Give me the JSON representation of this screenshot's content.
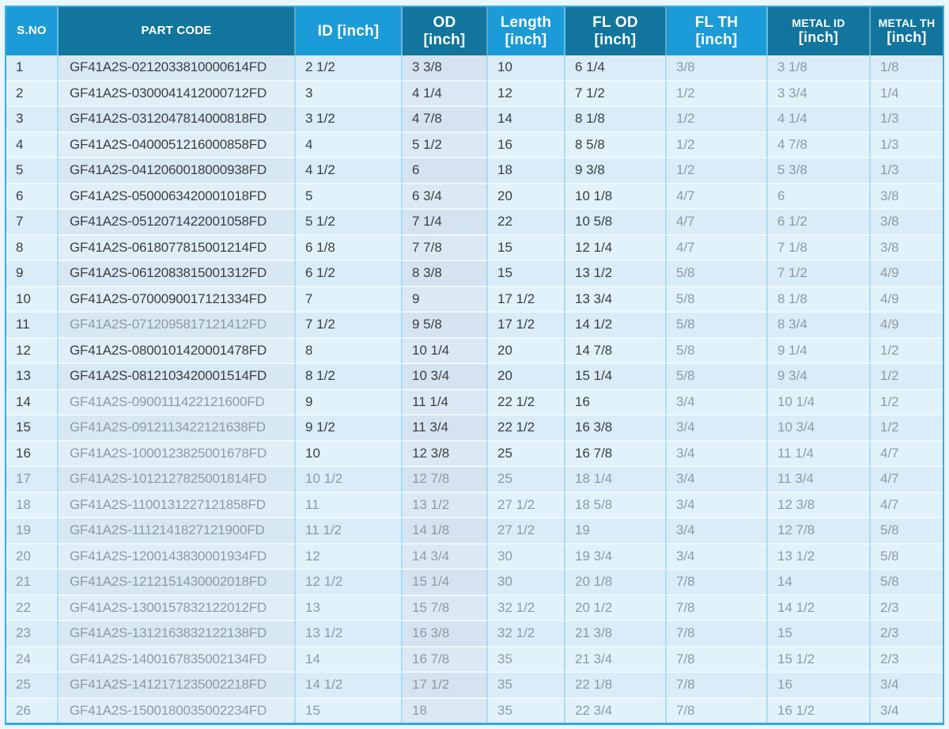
{
  "palette": {
    "page_background": "#e9f6fc",
    "header_light_blue": "#1b9bd7",
    "header_dark_teal": "#11759d",
    "row_odd": "#d9ecf7",
    "row_even": "#e1f2fa",
    "grid_vertical": "#a9dcf2",
    "grid_horizontal": "#edf8fd",
    "outer_border": "#38ade0",
    "text_dark": "#3b4043",
    "text_muted": "#8f9aa1"
  },
  "table": {
    "columns": [
      {
        "key": "sno",
        "lines": [
          "S.NO"
        ],
        "header_shade": "light"
      },
      {
        "key": "part_code",
        "lines": [
          "PART CODE"
        ],
        "header_shade": "dark"
      },
      {
        "key": "id",
        "lines": [
          "ID [inch]"
        ],
        "header_shade": "light"
      },
      {
        "key": "od",
        "lines": [
          "OD",
          "[inch]"
        ],
        "header_shade": "dark"
      },
      {
        "key": "length",
        "lines": [
          "Length",
          "[inch]"
        ],
        "header_shade": "light"
      },
      {
        "key": "fl_od",
        "lines": [
          "FL OD",
          "[inch]"
        ],
        "header_shade": "dark"
      },
      {
        "key": "fl_th",
        "lines": [
          "FL TH",
          "[inch]"
        ],
        "header_shade": "light"
      },
      {
        "key": "metal_id",
        "lines": [
          "METAL ID",
          "[inch]"
        ],
        "header_shade": "dark"
      },
      {
        "key": "metal_th",
        "lines": [
          "METAL TH",
          "[inch]"
        ],
        "header_shade": "dark"
      }
    ],
    "rows": [
      [
        "1",
        "GF41A2S-0212033810000614FD",
        "2 1/2",
        "3 3/8",
        "10",
        "6 1/4",
        "3/8",
        "3 1/8",
        "1/8"
      ],
      [
        "2",
        "GF41A2S-0300041412000712FD",
        "3",
        "4 1/4",
        "12",
        "7 1/2",
        "1/2",
        "3 3/4",
        "1/4"
      ],
      [
        "3",
        "GF41A2S-0312047814000818FD",
        "3 1/2",
        "4 7/8",
        "14",
        "8 1/8",
        "1/2",
        "4 1/4",
        "1/3"
      ],
      [
        "4",
        "GF41A2S-0400051216000858FD",
        "4",
        "5 1/2",
        "16",
        "8 5/8",
        "1/2",
        "4 7/8",
        "1/3"
      ],
      [
        "5",
        "GF41A2S-0412060018000938FD",
        "4 1/2",
        "6",
        "18",
        "9 3/8",
        "1/2",
        "5 3/8",
        "1/3"
      ],
      [
        "6",
        "GF41A2S-0500063420001018FD",
        "5",
        "6 3/4",
        "20",
        "10 1/8",
        "4/7",
        "6",
        "3/8"
      ],
      [
        "7",
        "GF41A2S-0512071422001058FD",
        "5 1/2",
        "7 1/4",
        "22",
        "10 5/8",
        "4/7",
        "6 1/2",
        "3/8"
      ],
      [
        "8",
        "GF41A2S-0618077815001214FD",
        "6 1/8",
        "7 7/8",
        "15",
        "12 1/4",
        "4/7",
        "7 1/8",
        "3/8"
      ],
      [
        "9",
        "GF41A2S-0612083815001312FD",
        "6 1/2",
        "8 3/8",
        "15",
        "13 1/2",
        "5/8",
        "7 1/2",
        "4/9"
      ],
      [
        "10",
        "GF41A2S-0700090017121334FD",
        "7",
        "9",
        "17 1/2",
        "13 3/4",
        "5/8",
        "8 1/8",
        "4/9"
      ],
      [
        "11",
        "GF41A2S-0712095817121412FD",
        "7 1/2",
        "9 5/8",
        "17 1/2",
        "14 1/2",
        "5/8",
        "8 3/4",
        "4/9"
      ],
      [
        "12",
        "GF41A2S-0800101420001478FD",
        "8",
        "10 1/4",
        "20",
        "14 7/8",
        "5/8",
        "9 1/4",
        "1/2"
      ],
      [
        "13",
        "GF41A2S-0812103420001514FD",
        "8 1/2",
        "10 3/4",
        "20",
        "15 1/4",
        "5/8",
        "9 3/4",
        "1/2"
      ],
      [
        "14",
        "GF41A2S-0900111422121600FD",
        "9",
        "11 1/4",
        "22 1/2",
        "16",
        "3/4",
        "10 1/4",
        "1/2"
      ],
      [
        "15",
        "GF41A2S-0912113422121638FD",
        "9 1/2",
        "11 3/4",
        "22 1/2",
        "16 3/8",
        "3/4",
        "10 3/4",
        "1/2"
      ],
      [
        "16",
        "GF41A2S-1000123825001678FD",
        "10",
        "12 3/8",
        "25",
        "16 7/8",
        "3/4",
        "11 1/4",
        "4/7"
      ],
      [
        "17",
        "GF41A2S-1012127825001814FD",
        "10 1/2",
        "12 7/8",
        "25",
        "18 1/4",
        "3/4",
        "11 3/4",
        "4/7"
      ],
      [
        "18",
        "GF41A2S-1100131227121858FD",
        "11",
        "13 1/2",
        "27 1/2",
        "18 5/8",
        "3/4",
        "12 3/8",
        "4/7"
      ],
      [
        "19",
        "GF41A2S-1112141827121900FD",
        "11 1/2",
        "14 1/8",
        "27 1/2",
        "19",
        "3/4",
        "12 7/8",
        "5/8"
      ],
      [
        "20",
        "GF41A2S-1200143830001934FD",
        "12",
        "14 3/4",
        "30",
        "19 3/4",
        "3/4",
        "13 1/2",
        "5/8"
      ],
      [
        "21",
        "GF41A2S-1212151430002018FD",
        "12 1/2",
        "15 1/4",
        "30",
        "20 1/8",
        "7/8",
        "14",
        "5/8"
      ],
      [
        "22",
        "GF41A2S-1300157832122012FD",
        "13",
        "15 7/8",
        "32 1/2",
        "20 1/2",
        "7/8",
        "14 1/2",
        "2/3"
      ],
      [
        "23",
        "GF41A2S-1312163832122138FD",
        "13 1/2",
        "16 3/8",
        "32 1/2",
        "21 3/8",
        "7/8",
        "15",
        "2/3"
      ],
      [
        "24",
        "GF41A2S-1400167835002134FD",
        "14",
        "16 7/8",
        "35",
        "21 3/4",
        "7/8",
        "15 1/2",
        "2/3"
      ],
      [
        "25",
        "GF41A2S-1412171235002218FD",
        "14 1/2",
        "17 1/2",
        "35",
        "22 1/8",
        "7/8",
        "16",
        "3/4"
      ],
      [
        "26",
        "GF41A2S-1500180035002234FD",
        "15",
        "18",
        "35",
        "22 3/4",
        "7/8",
        "16 1/2",
        "3/4"
      ]
    ],
    "muted_columns": [
      "fl_th",
      "metal_id",
      "metal_th"
    ],
    "fully_muted_rows": [
      17,
      18,
      19,
      20,
      21,
      22,
      23,
      24,
      25,
      26
    ],
    "muted_part_code_rows": [
      11,
      14,
      15,
      16
    ]
  }
}
